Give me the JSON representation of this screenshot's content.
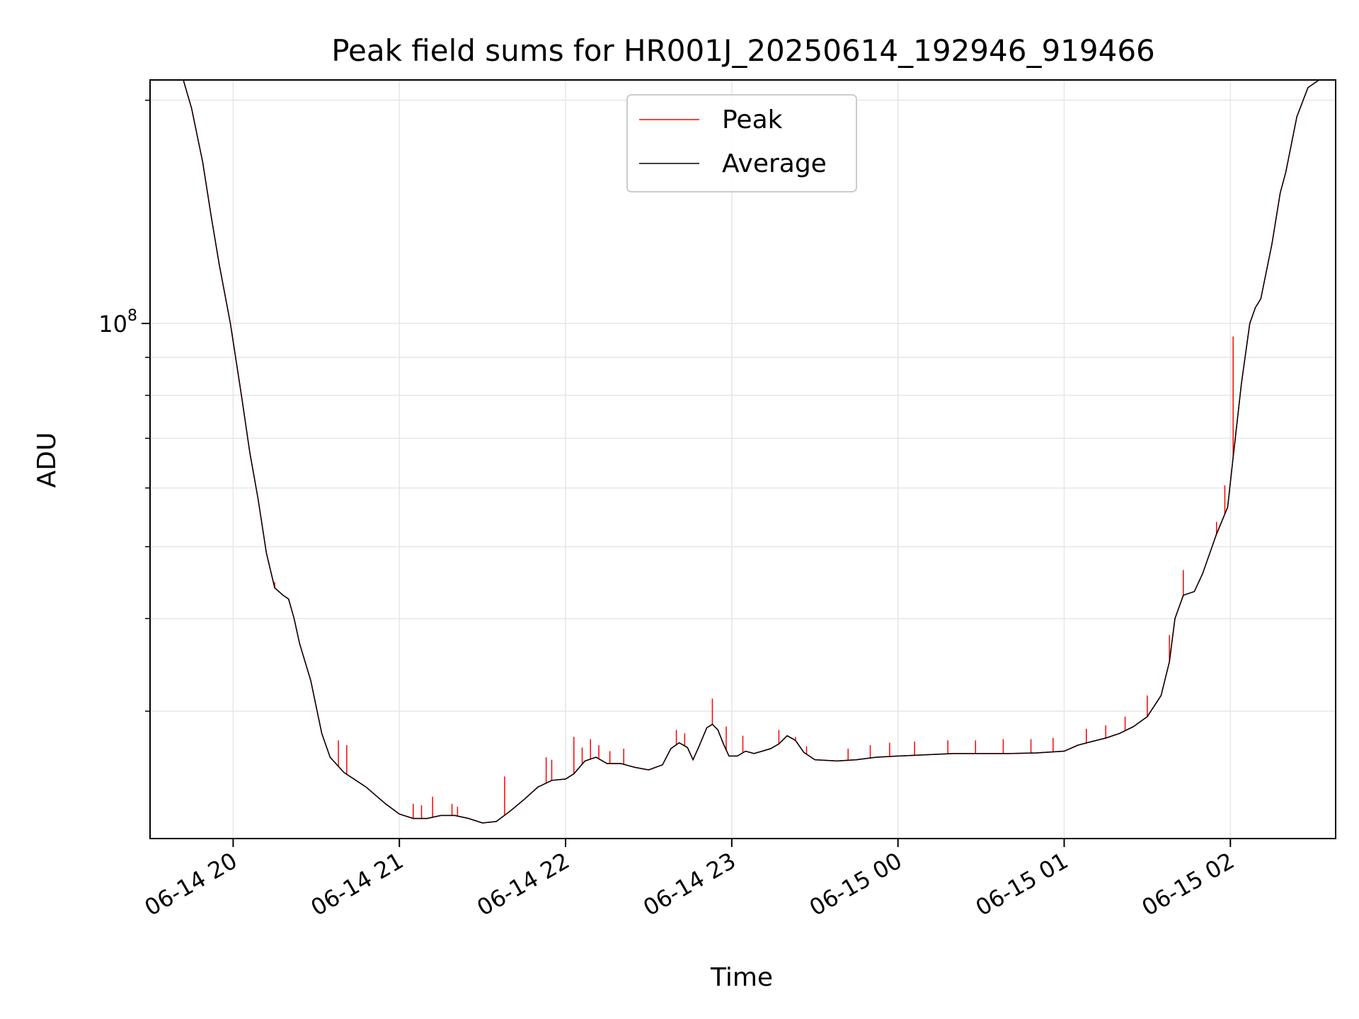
{
  "chart_data": {
    "type": "line",
    "title": "Peak field sums for HR001J_20250614_192946_919466",
    "xlabel": "Time",
    "ylabel": "ADU",
    "yscale": "log",
    "grid": true,
    "legend_placement": "upper center",
    "x_ticks": [
      "06-14 20",
      "06-14 21",
      "06-14 22",
      "06-14 23",
      "06-15 00",
      "06-15 01",
      "06-15 02"
    ],
    "x_tick_times": [
      "2025-06-14T20:00",
      "2025-06-14T21:00",
      "2025-06-14T22:00",
      "2025-06-14T23:00",
      "2025-06-15T00:00",
      "2025-06-15T01:00",
      "2025-06-15T02:00"
    ],
    "y_tick_label": "10^8",
    "y_tick_value": 100000000,
    "xlim": [
      "2025-06-14T19:30",
      "2025-06-15T02:38"
    ],
    "ylim": [
      20200000,
      213000000
    ],
    "series": [
      {
        "name": "Average",
        "color": "#000000",
        "points": [
          [
            "2025-06-14T19:42",
            213000000
          ],
          [
            "2025-06-14T19:45",
            195000000
          ],
          [
            "2025-06-14T19:49",
            165000000
          ],
          [
            "2025-06-14T19:52",
            140000000
          ],
          [
            "2025-06-14T19:55",
            120000000
          ],
          [
            "2025-06-14T19:59",
            100000000
          ],
          [
            "2025-06-14T20:03",
            80000000
          ],
          [
            "2025-06-14T20:06",
            67000000
          ],
          [
            "2025-06-14T20:09",
            58000000
          ],
          [
            "2025-06-14T20:12",
            49000000
          ],
          [
            "2025-06-14T20:15",
            44000000
          ],
          [
            "2025-06-14T20:18",
            43000000
          ],
          [
            "2025-06-14T20:20",
            42500000
          ],
          [
            "2025-06-14T20:22",
            40000000
          ],
          [
            "2025-06-14T20:24",
            37000000
          ],
          [
            "2025-06-14T20:28",
            33000000
          ],
          [
            "2025-06-14T20:32",
            28000000
          ],
          [
            "2025-06-14T20:35",
            26000000
          ],
          [
            "2025-06-14T20:40",
            24800000
          ],
          [
            "2025-06-14T20:48",
            23700000
          ],
          [
            "2025-06-14T20:55",
            22500000
          ],
          [
            "2025-06-14T21:00",
            21800000
          ],
          [
            "2025-06-14T21:05",
            21500000
          ],
          [
            "2025-06-14T21:10",
            21500000
          ],
          [
            "2025-06-14T21:15",
            21700000
          ],
          [
            "2025-06-14T21:20",
            21700000
          ],
          [
            "2025-06-14T21:25",
            21500000
          ],
          [
            "2025-06-14T21:30",
            21200000
          ],
          [
            "2025-06-14T21:35",
            21300000
          ],
          [
            "2025-06-14T21:40",
            22000000
          ],
          [
            "2025-06-14T21:45",
            22800000
          ],
          [
            "2025-06-14T21:50",
            23700000
          ],
          [
            "2025-06-14T21:55",
            24200000
          ],
          [
            "2025-06-14T22:00",
            24300000
          ],
          [
            "2025-06-14T22:03",
            24700000
          ],
          [
            "2025-06-14T22:07",
            25700000
          ],
          [
            "2025-06-14T22:11",
            26000000
          ],
          [
            "2025-06-14T22:15",
            25500000
          ],
          [
            "2025-06-14T22:20",
            25500000
          ],
          [
            "2025-06-14T22:25",
            25200000
          ],
          [
            "2025-06-14T22:30",
            25000000
          ],
          [
            "2025-06-14T22:35",
            25400000
          ],
          [
            "2025-06-14T22:38",
            26700000
          ],
          [
            "2025-06-14T22:41",
            27200000
          ],
          [
            "2025-06-14T22:44",
            26800000
          ],
          [
            "2025-06-14T22:46",
            25800000
          ],
          [
            "2025-06-14T22:48",
            26800000
          ],
          [
            "2025-06-14T22:51",
            28500000
          ],
          [
            "2025-06-14T22:53",
            28800000
          ],
          [
            "2025-06-14T22:55",
            28300000
          ],
          [
            "2025-06-14T22:57",
            27100000
          ],
          [
            "2025-06-14T22:59",
            26100000
          ],
          [
            "2025-06-14T23:02",
            26100000
          ],
          [
            "2025-06-14T23:05",
            26500000
          ],
          [
            "2025-06-14T23:08",
            26300000
          ],
          [
            "2025-06-14T23:11",
            26500000
          ],
          [
            "2025-06-14T23:14",
            26700000
          ],
          [
            "2025-06-14T23:17",
            27100000
          ],
          [
            "2025-06-14T23:20",
            27800000
          ],
          [
            "2025-06-14T23:23",
            27400000
          ],
          [
            "2025-06-14T23:26",
            26400000
          ],
          [
            "2025-06-14T23:30",
            25800000
          ],
          [
            "2025-06-14T23:38",
            25700000
          ],
          [
            "2025-06-14T23:45",
            25800000
          ],
          [
            "2025-06-14T23:52",
            26000000
          ],
          [
            "2025-06-15T00:00",
            26100000
          ],
          [
            "2025-06-15T00:10",
            26200000
          ],
          [
            "2025-06-15T00:20",
            26300000
          ],
          [
            "2025-06-15T00:30",
            26300000
          ],
          [
            "2025-06-15T00:40",
            26300000
          ],
          [
            "2025-06-15T00:50",
            26350000
          ],
          [
            "2025-06-15T01:00",
            26500000
          ],
          [
            "2025-06-15T01:05",
            27000000
          ],
          [
            "2025-06-15T01:10",
            27300000
          ],
          [
            "2025-06-15T01:15",
            27600000
          ],
          [
            "2025-06-15T01:20",
            28000000
          ],
          [
            "2025-06-15T01:25",
            28600000
          ],
          [
            "2025-06-15T01:30",
            29500000
          ],
          [
            "2025-06-15T01:35",
            31500000
          ],
          [
            "2025-06-15T01:38",
            35000000
          ],
          [
            "2025-06-15T01:40",
            40000000
          ],
          [
            "2025-06-15T01:43",
            43000000
          ],
          [
            "2025-06-15T01:47",
            43500000
          ],
          [
            "2025-06-15T01:50",
            46000000
          ],
          [
            "2025-06-15T01:55",
            52000000
          ],
          [
            "2025-06-15T01:59",
            56500000
          ],
          [
            "2025-06-15T02:01",
            66000000
          ],
          [
            "2025-06-15T02:04",
            83000000
          ],
          [
            "2025-06-15T02:07",
            100000000
          ],
          [
            "2025-06-15T02:09",
            105000000
          ],
          [
            "2025-06-15T02:11",
            108000000
          ],
          [
            "2025-06-15T02:15",
            128000000
          ],
          [
            "2025-06-15T02:18",
            150000000
          ],
          [
            "2025-06-15T02:20",
            160000000
          ],
          [
            "2025-06-15T02:24",
            190000000
          ],
          [
            "2025-06-15T02:28",
            208000000
          ],
          [
            "2025-06-15T02:32",
            213000000
          ]
        ]
      },
      {
        "name": "Peak",
        "color": "#ff0000",
        "spikes": [
          [
            "2025-06-14T20:15",
            44800000
          ],
          [
            "2025-06-14T20:38",
            27400000
          ],
          [
            "2025-06-14T20:41",
            27000000
          ],
          [
            "2025-06-14T21:05",
            22500000
          ],
          [
            "2025-06-14T21:08",
            22400000
          ],
          [
            "2025-06-14T21:12",
            23000000
          ],
          [
            "2025-06-14T21:19",
            22500000
          ],
          [
            "2025-06-14T21:21",
            22300000
          ],
          [
            "2025-06-14T21:38",
            24500000
          ],
          [
            "2025-06-14T21:53",
            26000000
          ],
          [
            "2025-06-14T21:55",
            25800000
          ],
          [
            "2025-06-14T22:03",
            27700000
          ],
          [
            "2025-06-14T22:06",
            26800000
          ],
          [
            "2025-06-14T22:09",
            27500000
          ],
          [
            "2025-06-14T22:12",
            27000000
          ],
          [
            "2025-06-14T22:16",
            26500000
          ],
          [
            "2025-06-14T22:21",
            26700000
          ],
          [
            "2025-06-14T22:40",
            28300000
          ],
          [
            "2025-06-14T22:43",
            28000000
          ],
          [
            "2025-06-14T22:53",
            31200000
          ],
          [
            "2025-06-14T22:58",
            28600000
          ],
          [
            "2025-06-14T23:04",
            27800000
          ],
          [
            "2025-06-14T23:17",
            28300000
          ],
          [
            "2025-06-14T23:23",
            27700000
          ],
          [
            "2025-06-14T23:27",
            26900000
          ],
          [
            "2025-06-14T23:42",
            26700000
          ],
          [
            "2025-06-14T23:50",
            27000000
          ],
          [
            "2025-06-14T23:57",
            27200000
          ],
          [
            "2025-06-15T00:06",
            27300000
          ],
          [
            "2025-06-15T00:18",
            27400000
          ],
          [
            "2025-06-15T00:28",
            27400000
          ],
          [
            "2025-06-15T00:38",
            27500000
          ],
          [
            "2025-06-15T00:48",
            27500000
          ],
          [
            "2025-06-15T00:56",
            27600000
          ],
          [
            "2025-06-15T01:08",
            28400000
          ],
          [
            "2025-06-15T01:15",
            28700000
          ],
          [
            "2025-06-15T01:22",
            29500000
          ],
          [
            "2025-06-15T01:30",
            31500000
          ],
          [
            "2025-06-15T01:38",
            38000000
          ],
          [
            "2025-06-15T01:43",
            46500000
          ],
          [
            "2025-06-15T01:55",
            54000000
          ],
          [
            "2025-06-15T01:58",
            60500000
          ],
          [
            "2025-06-15T02:01",
            96000000
          ]
        ]
      }
    ]
  }
}
